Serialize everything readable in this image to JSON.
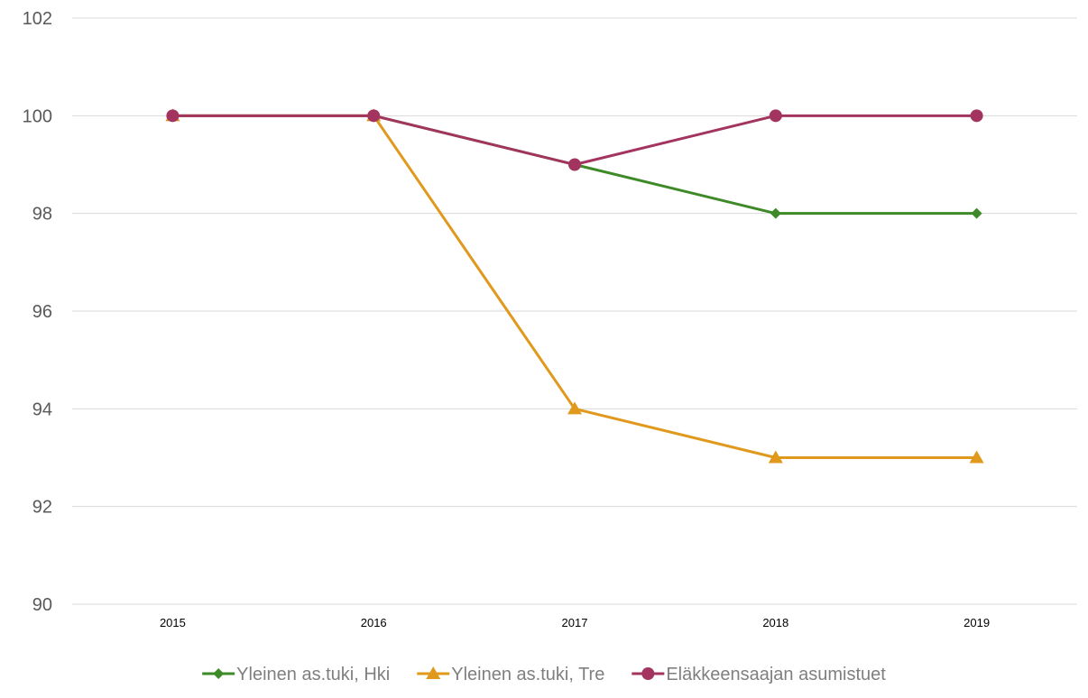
{
  "chart_data": {
    "type": "line",
    "categories": [
      "2015",
      "2016",
      "2017",
      "2018",
      "2019"
    ],
    "ylim": [
      90,
      102
    ],
    "y_ticks": [
      90,
      92,
      94,
      96,
      98,
      100,
      102
    ],
    "y_tick_labels": [
      "90",
      "92",
      "94",
      "96",
      "98",
      "100",
      "102"
    ],
    "grid": "horizontal",
    "legend_position": "bottom",
    "series": [
      {
        "name": "Yleinen as.tuki, Hki",
        "values": [
          100,
          100,
          99,
          98,
          98
        ],
        "color": "#3f8a28",
        "marker": "diamond"
      },
      {
        "name": "Yleinen as.tuki, Tre",
        "values": [
          100,
          100,
          94,
          93,
          93
        ],
        "color": "#e0991c",
        "marker": "triangle"
      },
      {
        "name": "Eläkkeensaajan asumistuet",
        "values": [
          100,
          100,
          99,
          100,
          100
        ],
        "color": "#a3345f",
        "marker": "circle"
      }
    ]
  }
}
